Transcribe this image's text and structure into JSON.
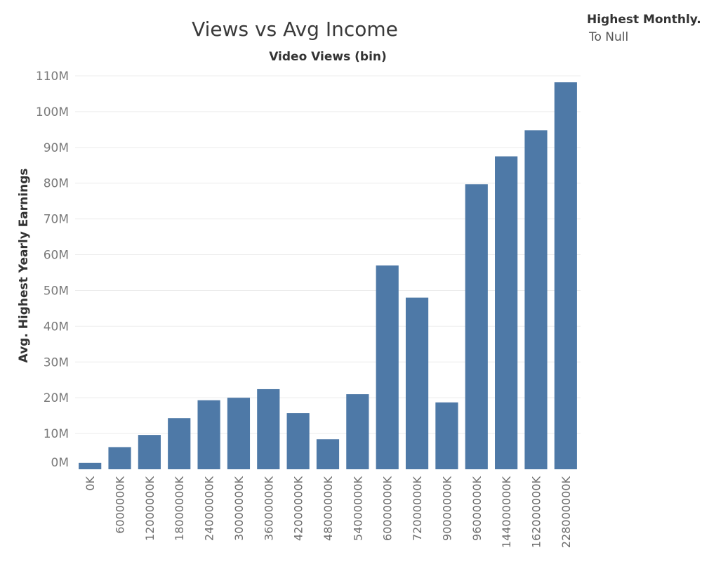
{
  "chart_data": {
    "type": "bar",
    "title": "Views vs Avg Income",
    "xlabel": "Video Views (bin)",
    "ylabel": "Avg. Highest Yearly Earnings",
    "categories": [
      "0K",
      "6000000K",
      "12000000K",
      "18000000K",
      "24000000K",
      "30000000K",
      "36000000K",
      "42000000K",
      "48000000K",
      "54000000K",
      "60000000K",
      "72000000K",
      "90000000K",
      "96000000K",
      "144000000K",
      "162000000K",
      "228000000K"
    ],
    "values": [
      1800000,
      6200000,
      9600000,
      14300000,
      19300000,
      20000000,
      22400000,
      15700000,
      8400000,
      21000000,
      57000000,
      48000000,
      18700000,
      79700000,
      87500000,
      94800000,
      108200000
    ],
    "ylim": [
      0,
      110000000
    ],
    "yticks": [
      0,
      10000000,
      20000000,
      30000000,
      40000000,
      50000000,
      60000000,
      70000000,
      80000000,
      90000000,
      100000000,
      110000000
    ],
    "ytick_labels": [
      "0M",
      "10M",
      "20M",
      "30M",
      "40M",
      "50M",
      "60M",
      "70M",
      "80M",
      "90M",
      "100M",
      "110M"
    ],
    "grid": true,
    "bar_color": "#4e79a7",
    "legend": {
      "title": "Highest Monthly..",
      "items": [
        "To Null"
      ],
      "placement": "top-right"
    }
  }
}
